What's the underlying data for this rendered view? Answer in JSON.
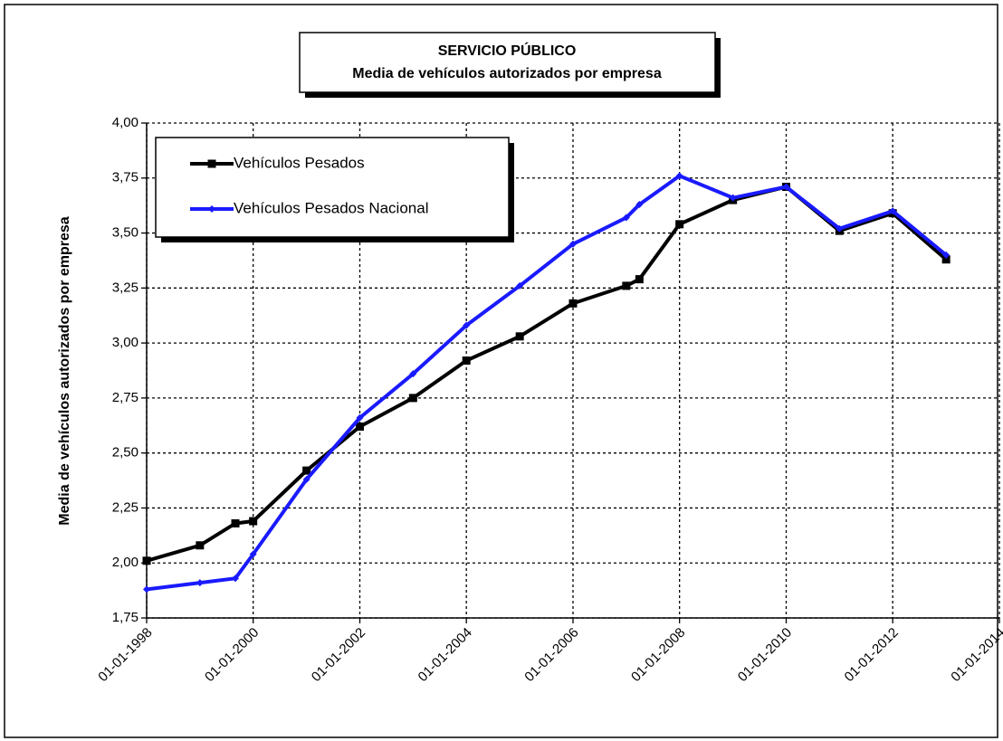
{
  "chart_data": {
    "type": "line",
    "title": "SERVICIO PÚBLICO",
    "subtitle": "Media de vehículos autorizados por empresa",
    "y_label": "Media de vehículos autorizados por empresa",
    "x": [
      "1998-01-01",
      "1999-01-01",
      "1999-09-01",
      "2000-01-01",
      "2001-01-01",
      "2002-01-01",
      "2003-01-01",
      "2004-01-01",
      "2005-01-01",
      "2006-01-01",
      "2007-01-01",
      "2007-04-01",
      "2008-01-01",
      "2009-01-01",
      "2010-01-01",
      "2011-01-01",
      "2012-01-01",
      "2013-01-01"
    ],
    "series": [
      {
        "name": "Vehículos Pesados",
        "color": "#000000",
        "marker": "square",
        "values": [
          2.01,
          2.08,
          2.18,
          2.19,
          2.42,
          2.62,
          2.75,
          2.92,
          3.03,
          3.18,
          3.26,
          3.29,
          3.54,
          3.65,
          3.71,
          3.51,
          3.59,
          3.38
        ]
      },
      {
        "name": "Vehículos Pesados Nacional",
        "color": "#1a1aff",
        "marker": "diamond",
        "values": [
          1.88,
          1.91,
          1.93,
          2.04,
          2.38,
          2.66,
          2.86,
          3.08,
          3.26,
          3.45,
          3.57,
          3.63,
          3.76,
          3.66,
          3.71,
          3.52,
          3.6,
          3.4
        ]
      }
    ],
    "xlim": [
      "1998-01-01",
      "2014-01-01"
    ],
    "xticks": [
      {
        "value": "1998-01-01",
        "label": "01-01-1998"
      },
      {
        "value": "2000-01-01",
        "label": "01-01-2000"
      },
      {
        "value": "2002-01-01",
        "label": "01-01-2002"
      },
      {
        "value": "2004-01-01",
        "label": "01-01-2004"
      },
      {
        "value": "2006-01-01",
        "label": "01-01-2006"
      },
      {
        "value": "2008-01-01",
        "label": "01-01-2008"
      },
      {
        "value": "2010-01-01",
        "label": "01-01-2010"
      },
      {
        "value": "2012-01-01",
        "label": "01-01-2012"
      },
      {
        "value": "2014-01-01",
        "label": "01-01-2014"
      }
    ],
    "ylim": [
      1.75,
      4
    ],
    "yticks": [
      {
        "value": 1.75,
        "label": "1,75"
      },
      {
        "value": 2,
        "label": "2,00"
      },
      {
        "value": 2.25,
        "label": "2,25"
      },
      {
        "value": 2.5,
        "label": "2,50"
      },
      {
        "value": 2.75,
        "label": "2,75"
      },
      {
        "value": 3,
        "label": "3,00"
      },
      {
        "value": 3.25,
        "label": "3,25"
      },
      {
        "value": 3.5,
        "label": "3,50"
      },
      {
        "value": 3.75,
        "label": "3,75"
      },
      {
        "value": 4,
        "label": "4,00"
      }
    ],
    "grid": true,
    "legend": "upper left"
  }
}
